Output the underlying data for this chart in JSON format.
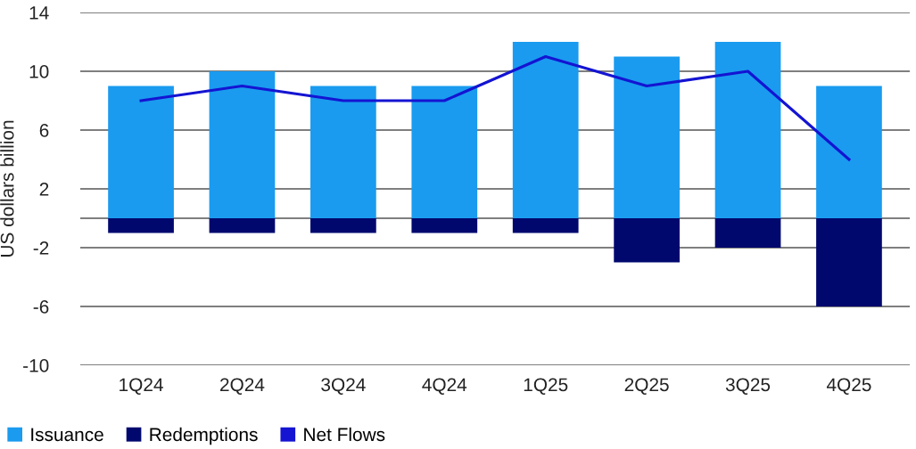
{
  "chart_data": {
    "type": "bar",
    "ylabel": "US dollars billion",
    "categories": [
      "1Q24",
      "2Q24",
      "3Q24",
      "4Q24",
      "1Q25",
      "2Q25",
      "3Q25",
      "4Q25"
    ],
    "stacked": true,
    "series": [
      {
        "name": "Issuance",
        "color": "#1a9bef",
        "values": [
          9,
          10,
          9,
          9,
          12,
          11,
          12,
          9
        ]
      },
      {
        "name": "Redemptions",
        "color": "#00086e",
        "values": [
          -1,
          -1,
          -1,
          -1,
          -1,
          -3,
          -2,
          -6
        ]
      },
      {
        "name": "Net Flows",
        "type": "line",
        "color": "#1414d2",
        "values": [
          8,
          9,
          8,
          8,
          11,
          9,
          10,
          4
        ]
      }
    ],
    "ylim": [
      -10,
      14
    ],
    "yticks": [
      -10,
      -6,
      -2,
      2,
      6,
      10,
      14
    ],
    "grid": "y",
    "ref_lines": [
      {
        "axis": "y",
        "value": 0,
        "color": "#000000"
      }
    ],
    "legend": "bottom left",
    "marker": "none",
    "line_style": "solid"
  }
}
